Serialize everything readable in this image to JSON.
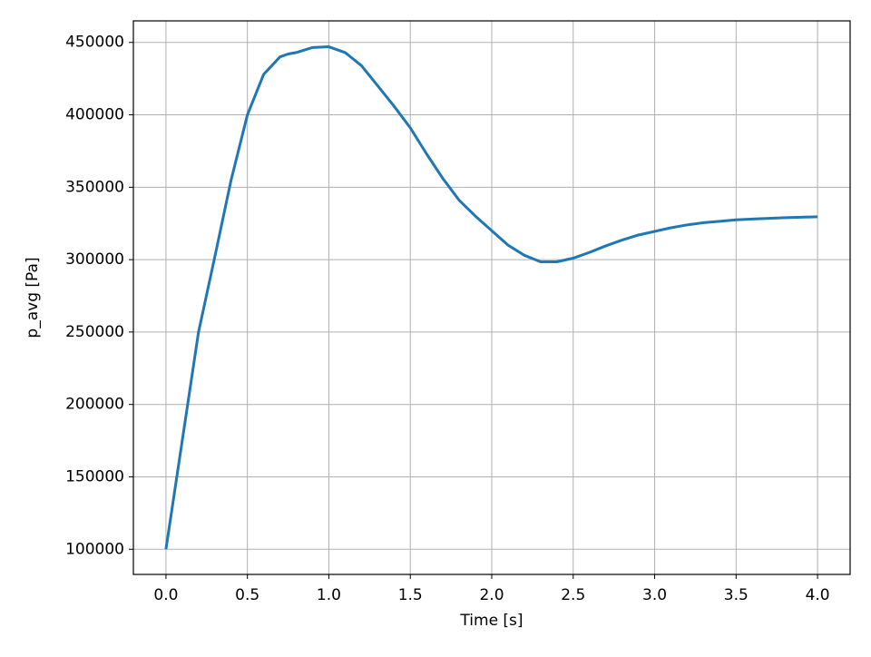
{
  "chart_data": {
    "type": "line",
    "xlabel": "Time [s]",
    "ylabel": "p_avg [Pa]",
    "x": [
      0.0,
      0.1,
      0.2,
      0.3,
      0.4,
      0.5,
      0.6,
      0.7,
      0.75,
      0.8,
      0.9,
      1.0,
      1.1,
      1.2,
      1.3,
      1.4,
      1.5,
      1.6,
      1.7,
      1.8,
      1.9,
      2.0,
      2.1,
      2.2,
      2.3,
      2.4,
      2.5,
      2.6,
      2.7,
      2.8,
      2.9,
      3.0,
      3.1,
      3.2,
      3.3,
      3.4,
      3.5,
      3.6,
      3.7,
      3.8,
      3.9,
      4.0
    ],
    "series": [
      {
        "name": "p_avg",
        "color": "#1f77b4",
        "values": [
          100000,
          175000,
          250000,
          302000,
          355000,
          400000,
          428000,
          440000,
          442000,
          443000,
          446500,
          447000,
          443000,
          434000,
          420000,
          406000,
          391000,
          373000,
          356000,
          341000,
          330000,
          320000,
          310000,
          303000,
          298500,
          298500,
          301000,
          305000,
          309500,
          313500,
          317000,
          319500,
          322000,
          324000,
          325500,
          326500,
          327500,
          328000,
          328500,
          329000,
          329300,
          329600
        ]
      }
    ],
    "xlim": [
      -0.2,
      4.2
    ],
    "ylim": [
      82625,
      464875
    ],
    "xticks": [
      {
        "value": 0,
        "label": "0.0"
      },
      {
        "value": 0.5,
        "label": "0.5"
      },
      {
        "value": 1,
        "label": "1.0"
      },
      {
        "value": 1.5,
        "label": "1.5"
      },
      {
        "value": 2,
        "label": "2.0"
      },
      {
        "value": 2.5,
        "label": "2.5"
      },
      {
        "value": 3,
        "label": "3.0"
      },
      {
        "value": 3.5,
        "label": "3.5"
      },
      {
        "value": 4,
        "label": "4.0"
      }
    ],
    "yticks": [
      100000,
      150000,
      200000,
      250000,
      300000,
      350000,
      400000,
      450000
    ],
    "grid": true
  }
}
